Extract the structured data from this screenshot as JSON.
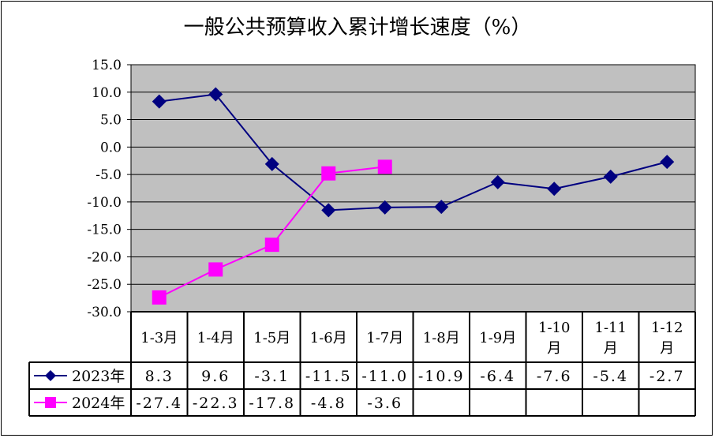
{
  "chart_data": {
    "type": "line",
    "title": "一般公共预算收入累计增长速度（%）",
    "categories": [
      "1-3月",
      "1-4月",
      "1-5月",
      "1-6月",
      "1-7月",
      "1-8月",
      "1-9月",
      "1-10月",
      "1-11月",
      "1-12月"
    ],
    "series": [
      {
        "name": "2023年",
        "color": "#000080",
        "marker": "diamond",
        "values": [
          8.3,
          9.6,
          -3.1,
          -11.5,
          -11.0,
          -10.9,
          -6.4,
          -7.6,
          -5.4,
          -2.7
        ],
        "labels": [
          "8.3",
          "9.6",
          "-3.1",
          "-11.5",
          "-11.0",
          "-10.9",
          "-6.4",
          "-7.6",
          "-5.4",
          "-2.7"
        ]
      },
      {
        "name": "2024年",
        "color": "#ff00ff",
        "marker": "square",
        "values": [
          -27.4,
          -22.3,
          -17.8,
          -4.8,
          -3.6,
          null,
          null,
          null,
          null,
          null
        ],
        "labels": [
          "-27.4",
          "-22.3",
          "-17.8",
          "-4.8",
          "-3.6",
          "",
          "",
          "",
          "",
          ""
        ]
      }
    ],
    "ylim": [
      -30,
      15
    ],
    "yticks": [
      "15.0",
      "10.0",
      "5.0",
      "0.0",
      "-5.0",
      "-10.0",
      "-15.0",
      "-20.0",
      "-25.0",
      "-30.0"
    ],
    "grid": true,
    "plot_background": "#c0c0c0",
    "legend": "data-table-left"
  }
}
